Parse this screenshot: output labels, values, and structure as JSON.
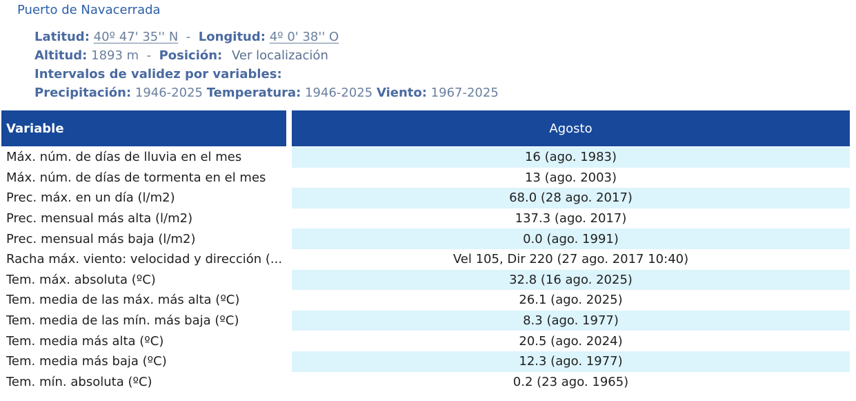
{
  "station": {
    "name": "Puerto de Navacerrada",
    "latitude_label": "Latitud:",
    "latitude_value": "40º 47' 35'' N",
    "sep1": " - ",
    "longitude_label": "Longitud:",
    "longitude_value": "4º 0' 38'' O",
    "altitude_label": "Altitud:",
    "altitude_value": "1893 m",
    "sep2": "  -  ",
    "position_label": "Posición:",
    "position_link": "Ver localización",
    "validity_label": "Intervalos de validez por variables:",
    "precip_label": "Precipitación:",
    "precip_value": "1946-2025",
    "temp_label": "Temperatura:",
    "temp_value": "1946-2025",
    "wind_label": "Viento:",
    "wind_value": "1967-2025"
  },
  "table": {
    "header_variable": "Variable",
    "header_month": "Agosto",
    "rows": [
      {
        "variable": "Máx. núm. de días de lluvia en el mes",
        "value": "16 (ago. 1983)"
      },
      {
        "variable": "Máx. núm. de días de tormenta en el mes",
        "value": "13 (ago. 2003)"
      },
      {
        "variable": "Prec. máx. en un día (l/m2)",
        "value": "68.0 (28 ago. 2017)"
      },
      {
        "variable": "Prec. mensual más alta (l/m2)",
        "value": "137.3 (ago. 2017)"
      },
      {
        "variable": "Prec. mensual más baja (l/m2)",
        "value": "0.0 (ago. 1991)"
      },
      {
        "variable": "Racha máx. viento: velocidad y dirección (...",
        "value": "Vel 105, Dir 220 (27 ago. 2017 10:40)"
      },
      {
        "variable": "Tem. máx. absoluta (ºC)",
        "value": "32.8 (16 ago. 2025)"
      },
      {
        "variable": "Tem. media de las máx. más alta (ºC)",
        "value": "26.1 (ago. 2025)"
      },
      {
        "variable": "Tem. media de las mín. más baja (ºC)",
        "value": "8.3 (ago. 1977)"
      },
      {
        "variable": "Tem. media más alta (ºC)",
        "value": "20.5 (ago. 2024)"
      },
      {
        "variable": "Tem. media más baja (ºC)",
        "value": "12.3 (ago. 1977)"
      },
      {
        "variable": "Tem. mín. absoluta (ºC)",
        "value": "0.2 (23 ago. 1965)"
      }
    ]
  }
}
